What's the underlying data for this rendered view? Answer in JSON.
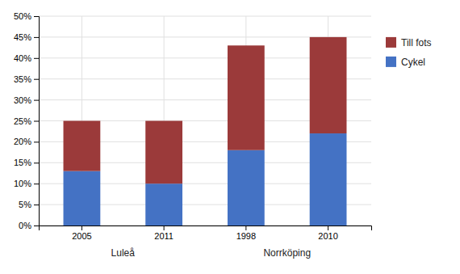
{
  "chart_data": {
    "type": "bar",
    "stacked": true,
    "categories": [
      "2005",
      "2011",
      "1998",
      "2010"
    ],
    "series": [
      {
        "name": "Cykel",
        "color": "#4472C4",
        "values": [
          0.13,
          0.1,
          0.18,
          0.22
        ]
      },
      {
        "name": "Till fots",
        "color": "#9B3A3A",
        "values": [
          0.12,
          0.15,
          0.25,
          0.23
        ]
      }
    ],
    "ylim": [
      0,
      0.5
    ],
    "yticks": [
      {
        "value": 0.0,
        "label": "0%"
      },
      {
        "value": 0.05,
        "label": "5%"
      },
      {
        "value": 0.1,
        "label": "10%"
      },
      {
        "value": 0.15,
        "label": "15%"
      },
      {
        "value": 0.2,
        "label": "20%"
      },
      {
        "value": 0.25,
        "label": "25%"
      },
      {
        "value": 0.3,
        "label": "30%"
      },
      {
        "value": 0.35,
        "label": "35%"
      },
      {
        "value": 0.4,
        "label": "40%"
      },
      {
        "value": 0.45,
        "label": "45%"
      },
      {
        "value": 0.5,
        "label": "50%"
      }
    ],
    "annotations": [
      {
        "text": "Luleå",
        "categories": [
          "2005",
          "2011"
        ]
      },
      {
        "text": "Norrköping",
        "categories": [
          "1998",
          "2010"
        ]
      }
    ],
    "grid": true,
    "legend": "right"
  }
}
